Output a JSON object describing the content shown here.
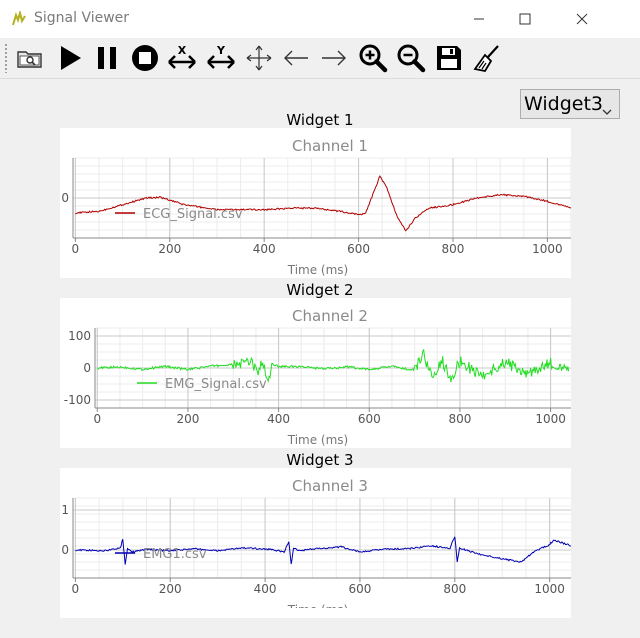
{
  "window": {
    "title": "Signal Viewer",
    "controls": [
      "minimize",
      "maximize",
      "close"
    ]
  },
  "toolbar": {
    "tools": [
      {
        "name": "open-file-icon"
      },
      {
        "name": "play-icon"
      },
      {
        "name": "pause-icon"
      },
      {
        "name": "stop-icon"
      },
      {
        "name": "stretch-x-icon",
        "label": "X"
      },
      {
        "name": "stretch-y-icon",
        "label": "Y"
      },
      {
        "name": "move-icon"
      },
      {
        "name": "arrow-left-icon"
      },
      {
        "name": "arrow-right-icon"
      },
      {
        "name": "zoom-in-icon"
      },
      {
        "name": "zoom-out-icon"
      },
      {
        "name": "save-icon"
      },
      {
        "name": "clear-icon"
      }
    ]
  },
  "widget_select": {
    "selected": "Widget3"
  },
  "colors": {
    "ecg": "#b00000",
    "emg": "#22dd22",
    "emg1": "#0000b0"
  },
  "widgets": [
    {
      "title": "Widget 1"
    },
    {
      "title": "Widget 2"
    },
    {
      "title": "Widget 3"
    }
  ],
  "chart_data": [
    {
      "type": "line",
      "title": "Channel 1",
      "xlabel": "Time (ms)",
      "ylabel": "",
      "xlim": [
        -5,
        1050
      ],
      "ylim": [
        -1.2,
        1.2
      ],
      "xticks": [
        0,
        200,
        400,
        600,
        800,
        1000
      ],
      "yticks": [
        0
      ],
      "grid": true,
      "legend": "bottom-left",
      "series": [
        {
          "name": "ECG_Signal.csv",
          "color": "#b00000",
          "x": [
            0,
            50,
            100,
            150,
            180,
            230,
            300,
            400,
            470,
            520,
            560,
            600,
            615,
            630,
            645,
            660,
            680,
            700,
            720,
            750,
            800,
            850,
            900,
            950,
            1000,
            1050
          ],
          "y": [
            -0.45,
            -0.4,
            -0.2,
            0.0,
            0.02,
            -0.2,
            -0.35,
            -0.35,
            -0.3,
            -0.32,
            -0.4,
            -0.5,
            -0.45,
            0.1,
            0.65,
            0.3,
            -0.5,
            -1.0,
            -0.6,
            -0.3,
            -0.2,
            0.0,
            0.1,
            0.05,
            -0.1,
            -0.3
          ]
        }
      ]
    },
    {
      "type": "line",
      "title": "Channel 2",
      "xlabel": "Time (ms)",
      "ylabel": "",
      "xlim": [
        -5,
        1045
      ],
      "ylim": [
        -125,
        125
      ],
      "xticks": [
        0,
        200,
        400,
        600,
        800,
        1000
      ],
      "yticks": [
        100,
        0,
        -100
      ],
      "grid": true,
      "legend": "bottom-left",
      "series": [
        {
          "name": "EMG_Signal.csv",
          "color": "#22dd22",
          "x": [
            0,
            50,
            100,
            150,
            200,
            250,
            300,
            340,
            355,
            365,
            375,
            385,
            400,
            450,
            500,
            550,
            600,
            650,
            700,
            720,
            740,
            760,
            780,
            800,
            850,
            900,
            950,
            1000,
            1040
          ],
          "y": [
            0,
            3,
            -4,
            5,
            -5,
            6,
            10,
            18,
            -20,
            30,
            -50,
            12,
            5,
            4,
            -3,
            4,
            -5,
            5,
            -8,
            45,
            -40,
            25,
            -30,
            20,
            -25,
            18,
            -20,
            15,
            -10
          ]
        }
      ]
    },
    {
      "type": "line",
      "title": "Channel 3",
      "xlabel": "Time (ms)",
      "ylabel": "",
      "xlim": [
        -5,
        1045
      ],
      "ylim": [
        -0.7,
        1.3
      ],
      "xticks": [
        0,
        200,
        400,
        600,
        800,
        1000
      ],
      "yticks": [
        1,
        0
      ],
      "grid": true,
      "legend": "bottom-left",
      "series": [
        {
          "name": "EMG1.csv",
          "color": "#0000b0",
          "x": [
            0,
            60,
            95,
            100,
            105,
            110,
            120,
            150,
            200,
            250,
            300,
            350,
            410,
            440,
            450,
            455,
            460,
            470,
            500,
            560,
            600,
            650,
            700,
            750,
            790,
            800,
            805,
            810,
            850,
            900,
            940,
            970,
            995,
            1010,
            1045
          ],
          "y": [
            0,
            -0.02,
            0.05,
            0.28,
            -0.38,
            0.05,
            -0.05,
            0.02,
            -0.02,
            0.03,
            -0.02,
            0.05,
            0.02,
            -0.05,
            0.2,
            -0.35,
            0.05,
            -0.02,
            0.02,
            0.08,
            -0.05,
            0.02,
            0.03,
            0.1,
            0.05,
            0.35,
            -0.3,
            0.05,
            -0.1,
            -0.22,
            -0.3,
            -0.02,
            0.1,
            0.25,
            0.1
          ]
        }
      ]
    }
  ]
}
